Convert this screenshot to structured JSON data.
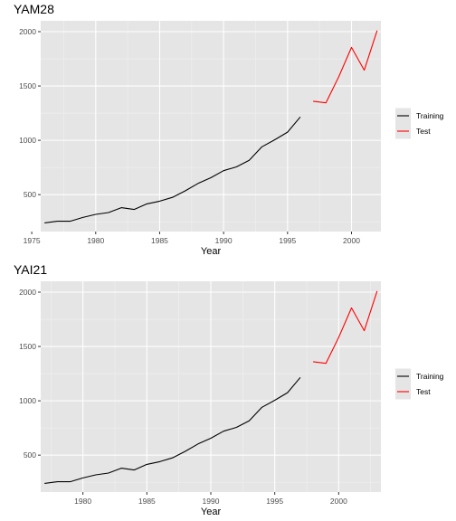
{
  "colors": {
    "panel_bg": "#e5e5e5",
    "grid_major": "#ffffff",
    "grid_minor": "#f0f0f0",
    "training": "#000000",
    "test": "#ff0000",
    "axis_text": "#4d4d4d"
  },
  "chart_data": [
    {
      "type": "line",
      "title": "YAM28",
      "xlabel": "Year",
      "ylabel": "",
      "xlim": [
        1975.7,
        2002.3
      ],
      "ylim": [
        160,
        2100
      ],
      "xticks": [
        1975,
        1980,
        1985,
        1990,
        1995,
        2000
      ],
      "xtick_labels": [
        "1975",
        "1980",
        "1985",
        "1990",
        "1995",
        "2000"
      ],
      "yticks": [
        500,
        1000,
        1500,
        2000
      ],
      "ytick_labels": [
        "500",
        "1000",
        "1500",
        "2000"
      ],
      "grid": true,
      "legend_position": "right",
      "series": [
        {
          "name": "Training",
          "color": "#000000",
          "x": [
            1976,
            1977,
            1978,
            1979,
            1980,
            1981,
            1982,
            1983,
            1984,
            1985,
            1986,
            1987,
            1988,
            1989,
            1990,
            1991,
            1992,
            1993,
            1994,
            1995,
            1996
          ],
          "values": [
            240,
            255,
            255,
            290,
            318,
            335,
            380,
            363,
            415,
            440,
            475,
            535,
            603,
            655,
            720,
            755,
            815,
            940,
            1005,
            1075,
            1215
          ]
        },
        {
          "name": "Test",
          "color": "#ff0000",
          "x": [
            1997,
            1998,
            1999,
            2000,
            2001,
            2002
          ],
          "values": [
            1360,
            1345,
            1585,
            1855,
            1645,
            2010
          ]
        }
      ]
    },
    {
      "type": "line",
      "title": "YAI21",
      "xlabel": "Year",
      "ylabel": "",
      "xlim": [
        1976.7,
        2003.3
      ],
      "ylim": [
        160,
        2100
      ],
      "xticks": [
        1980,
        1985,
        1990,
        1995,
        2000
      ],
      "xtick_labels": [
        "1980",
        "1985",
        "1990",
        "1995",
        "2000"
      ],
      "yticks": [
        500,
        1000,
        1500,
        2000
      ],
      "ytick_labels": [
        "500",
        "1000",
        "1500",
        "2000"
      ],
      "grid": true,
      "legend_position": "right",
      "series": [
        {
          "name": "Training",
          "color": "#000000",
          "x": [
            1977,
            1978,
            1979,
            1980,
            1981,
            1982,
            1983,
            1984,
            1985,
            1986,
            1987,
            1988,
            1989,
            1990,
            1991,
            1992,
            1993,
            1994,
            1995,
            1996,
            1997
          ],
          "values": [
            240,
            255,
            255,
            290,
            318,
            335,
            380,
            363,
            415,
            440,
            475,
            535,
            603,
            655,
            720,
            755,
            815,
            940,
            1005,
            1075,
            1215
          ]
        },
        {
          "name": "Test",
          "color": "#ff0000",
          "x": [
            1998,
            1999,
            2000,
            2001,
            2002,
            2003
          ],
          "values": [
            1360,
            1345,
            1585,
            1855,
            1645,
            2010
          ]
        }
      ]
    }
  ]
}
